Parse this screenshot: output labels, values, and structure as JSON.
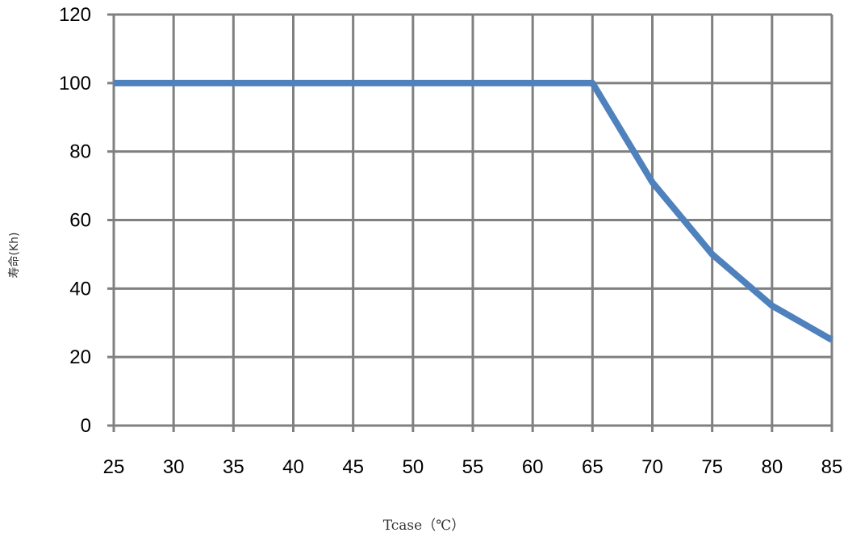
{
  "chart_data": {
    "type": "line",
    "x": [
      25,
      30,
      35,
      40,
      45,
      50,
      55,
      60,
      65,
      70,
      75,
      80,
      85
    ],
    "series": [
      {
        "values": [
          100,
          100,
          100,
          100,
          100,
          100,
          100,
          100,
          100,
          71,
          50,
          35,
          25
        ]
      }
    ],
    "xlim": [
      25,
      85
    ],
    "ylim": [
      0,
      120
    ],
    "x_ticks": [
      "25",
      "30",
      "35",
      "40",
      "45",
      "50",
      "55",
      "60",
      "65",
      "70",
      "75",
      "80",
      "85"
    ],
    "y_ticks": [
      "0",
      "20",
      "40",
      "60",
      "80",
      "100",
      "120"
    ],
    "xlabel": "Tcase（℃）",
    "ylabel": "寿命(Kh)",
    "grid": true,
    "colors": {
      "line": "#4f81bd",
      "grid": "#808080"
    }
  }
}
